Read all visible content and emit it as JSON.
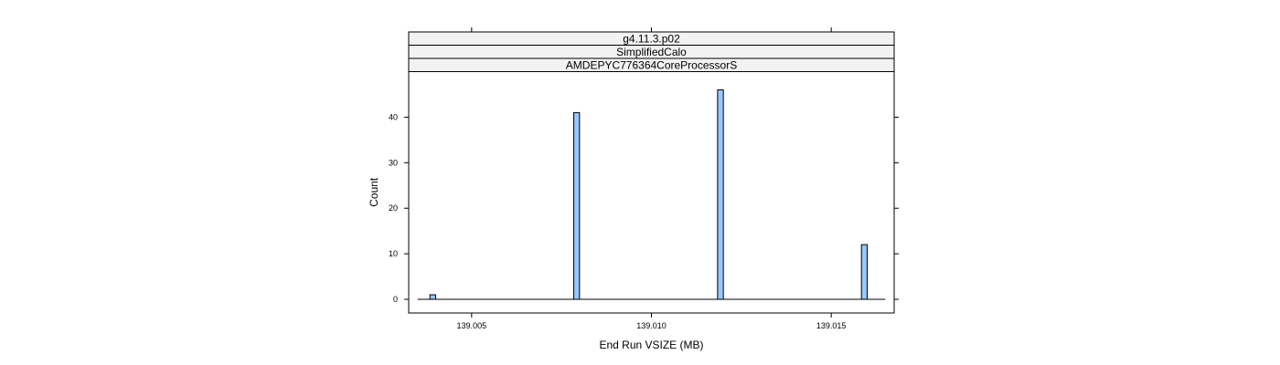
{
  "chart_data": {
    "type": "bar",
    "strips": [
      "g4.11.3.p02",
      "SimplifiedCalo",
      "AMDEPYC776364CoreProcessorS"
    ],
    "xlabel": "End Run VSIZE (MB)",
    "ylabel": "Count",
    "xlim": [
      139.00325,
      139.01675
    ],
    "ylim": [
      -3,
      50
    ],
    "baseline_range": [
      139.0035,
      139.0165
    ],
    "x_ticks": [
      {
        "value": 139.005,
        "label": "139.005"
      },
      {
        "value": 139.01,
        "label": "139.010"
      },
      {
        "value": 139.015,
        "label": "139.015"
      }
    ],
    "y_ticks": [
      {
        "value": 0,
        "label": "0"
      },
      {
        "value": 10,
        "label": "10"
      },
      {
        "value": 20,
        "label": "20"
      },
      {
        "value": 30,
        "label": "30"
      },
      {
        "value": 40,
        "label": "40"
      }
    ],
    "bin_width": 0.00016,
    "bins": [
      {
        "x": 139.00392,
        "count": 1
      },
      {
        "x": 139.00792,
        "count": 41
      },
      {
        "x": 139.01192,
        "count": 46
      },
      {
        "x": 139.01592,
        "count": 12
      }
    ],
    "colors": {
      "bar_fill": "#99c6ff",
      "bar_stroke": "#000000",
      "strip_fill": "#f2f2f2",
      "frame": "#000000"
    },
    "grid": false,
    "legend": "none"
  }
}
